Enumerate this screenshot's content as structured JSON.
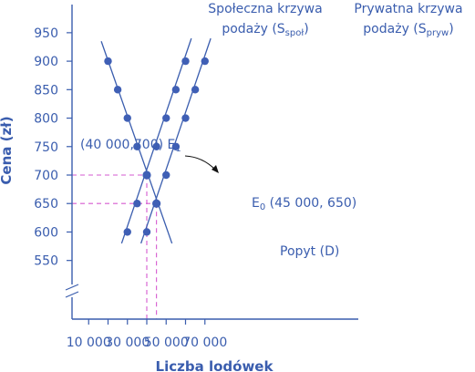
{
  "chart_data": {
    "type": "line",
    "xlabel": "Liczba lodówek",
    "ylabel": "Cena (zł)",
    "x_ticks": [
      10000,
      30000,
      50000,
      70000
    ],
    "x_tick_labels": [
      "10 000",
      "30 000",
      "50 000",
      "70 000"
    ],
    "y_ticks": [
      550,
      600,
      650,
      700,
      750,
      800,
      850,
      900,
      950
    ],
    "y_tick_labels": [
      "550",
      "600",
      "650",
      "700",
      "750",
      "800",
      "850",
      "900",
      "950"
    ],
    "xlim": [
      0,
      75000
    ],
    "ylim": [
      500,
      975
    ],
    "y_axis_break": true,
    "grid": false,
    "series": [
      {
        "name": "Społeczna krzywa podaży (Sspoł)",
        "label_main": "Społeczna krzywa",
        "label_prefix": "podaży (S",
        "label_sub": "społ",
        "label_suffix": ")",
        "color": "#3a5dae",
        "x": [
          30000,
          35000,
          40000,
          45000,
          50000,
          55000,
          60000
        ],
        "y": [
          600,
          650,
          700,
          750,
          800,
          850,
          900
        ],
        "line_x": [
          27000,
          63000
        ],
        "line_y": [
          580,
          940
        ]
      },
      {
        "name": "Prywatna krzywa podaży (Spryw)",
        "label_main": "Prywatna krzywa",
        "label_prefix": "podaży (S",
        "label_sub": "pryw",
        "label_suffix": ")",
        "color": "#3a5dae",
        "x": [
          40000,
          45000,
          50000,
          55000,
          60000,
          65000,
          70000
        ],
        "y": [
          600,
          650,
          700,
          750,
          800,
          850,
          900
        ],
        "line_x": [
          37000,
          73000
        ],
        "line_y": [
          580,
          940
        ]
      },
      {
        "name": "Popyt (D)",
        "color": "#3a5dae",
        "x": [
          20000,
          25000,
          30000,
          35000,
          40000,
          45000
        ],
        "y": [
          900,
          850,
          800,
          750,
          700,
          650
        ],
        "line_x": [
          16500,
          53000
        ],
        "line_y": [
          935,
          580
        ]
      }
    ],
    "equilibria": [
      {
        "name": "E1",
        "letter": "E",
        "sub": "1",
        "label": "(40 000,700)",
        "x": 40000,
        "y": 700
      },
      {
        "name": "E0",
        "letter": "E",
        "sub": "0",
        "label": "(45 000, 650)",
        "x": 45000,
        "y": 650
      }
    ],
    "colors": {
      "line": "#3a5dae",
      "marker": "#3f5fb5",
      "dashed": "#d65ad0"
    }
  }
}
